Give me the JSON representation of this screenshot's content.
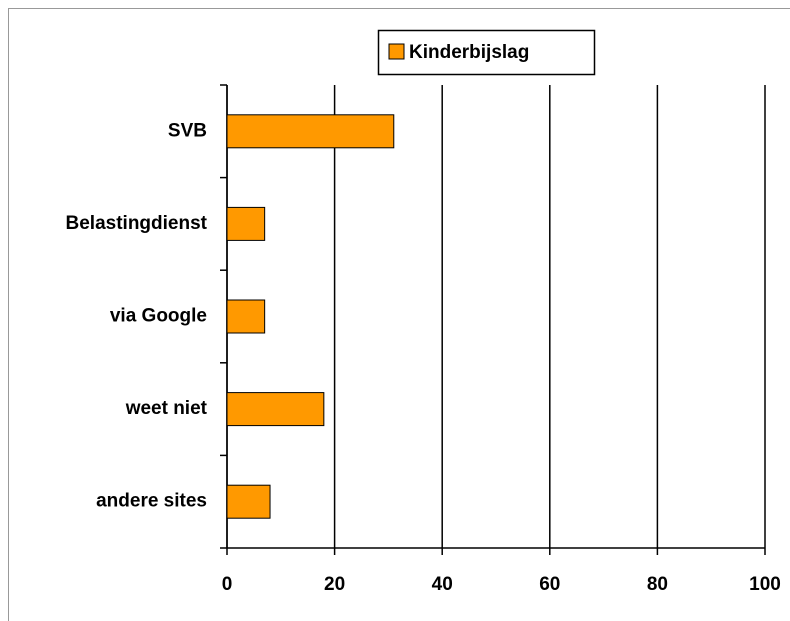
{
  "chart_data": {
    "type": "bar",
    "orientation": "horizontal",
    "categories": [
      "SVB",
      "Belastingdienst",
      "via Google",
      "weet niet",
      "andere sites"
    ],
    "series": [
      {
        "name": "Kinderbijslag",
        "color": "#ff9900",
        "values": [
          31,
          7,
          7,
          18,
          8
        ]
      }
    ],
    "xlim": [
      0,
      100
    ],
    "xticks": [
      0,
      20,
      40,
      60,
      80,
      100
    ],
    "grid": true,
    "legend": "top"
  }
}
